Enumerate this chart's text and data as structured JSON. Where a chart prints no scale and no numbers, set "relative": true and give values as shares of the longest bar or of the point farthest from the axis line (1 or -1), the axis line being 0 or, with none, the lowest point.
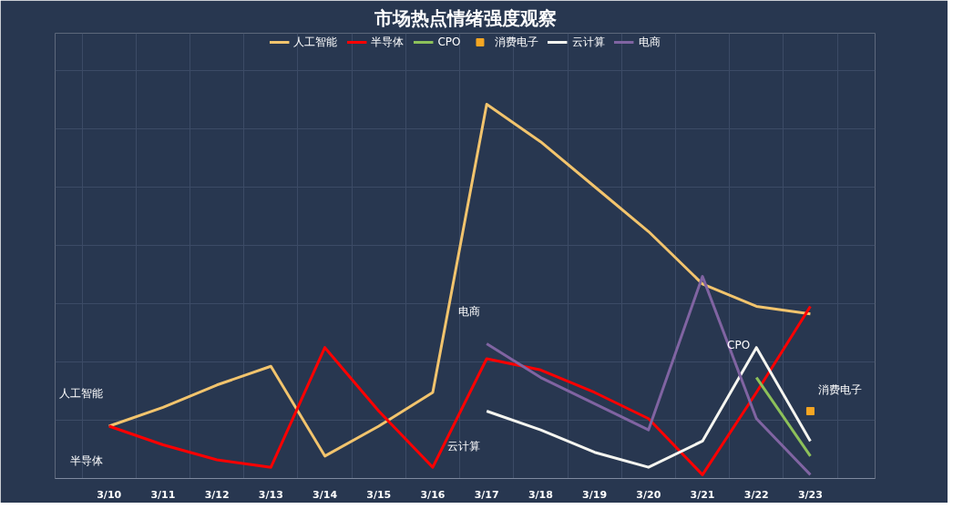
{
  "chart_data": {
    "type": "line",
    "title": "市场热点情绪强度观察",
    "relative": true,
    "grid": true,
    "legend": "top",
    "categories": [
      "3/10",
      "3/11",
      "3/12",
      "3/13",
      "3/14",
      "3/15",
      "3/16",
      "3/17",
      "3/18",
      "3/19",
      "3/20",
      "3/21",
      "3/22",
      "3/23"
    ],
    "series": [
      {
        "name": "人工智能",
        "color": "#f2c46d",
        "values": [
          0.14,
          0.19,
          0.25,
          0.3,
          0.06,
          0.14,
          0.23,
          1.0,
          0.9,
          0.78,
          0.66,
          0.52,
          0.46,
          0.44
        ]
      },
      {
        "name": "半导体",
        "color": "#ff0000",
        "values": [
          0.14,
          0.09,
          0.05,
          0.03,
          0.35,
          0.18,
          0.03,
          0.32,
          0.29,
          0.23,
          0.16,
          0.01,
          0.23,
          0.46
        ]
      },
      {
        "name": "CPO",
        "color": "#8dc15a",
        "values": [
          null,
          null,
          null,
          null,
          null,
          null,
          null,
          null,
          null,
          null,
          null,
          null,
          0.27,
          0.06
        ]
      },
      {
        "name": "消费电子",
        "color": "#f5a623",
        "type": "scatter",
        "marker": "square",
        "values": [
          null,
          null,
          null,
          null,
          null,
          null,
          null,
          null,
          null,
          null,
          null,
          null,
          null,
          0.18
        ]
      },
      {
        "name": "云计算",
        "color": "#f5f5f0",
        "values": [
          null,
          null,
          null,
          null,
          null,
          null,
          null,
          0.18,
          0.13,
          0.07,
          0.03,
          0.1,
          0.35,
          0.1
        ]
      },
      {
        "name": "电商",
        "color": "#8064a2",
        "values": [
          null,
          null,
          null,
          null,
          null,
          null,
          null,
          0.36,
          0.27,
          0.2,
          0.13,
          0.54,
          0.16,
          0.01
        ]
      }
    ]
  }
}
